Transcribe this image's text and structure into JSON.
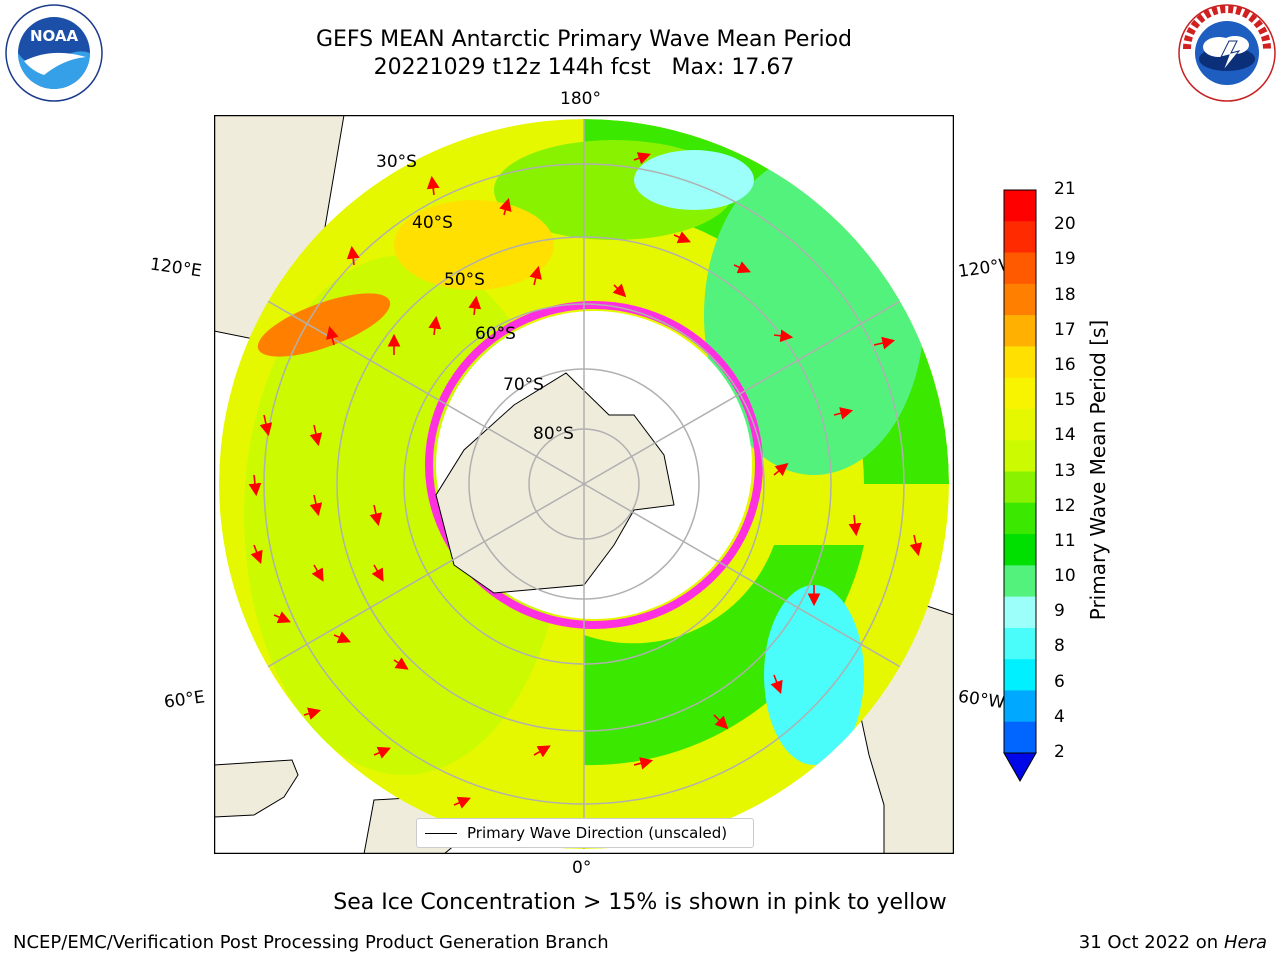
{
  "title": {
    "line1": "GEFS MEAN Antarctic Primary Wave Mean Period",
    "line2": "20221029 t12z 144h fcst   Max: 17.67"
  },
  "logos": {
    "left": "NOAA",
    "left_ring": "NATIONAL OCEANIC AND ATMOSPHERIC ADMINISTRATION · U.S. DEPARTMENT OF COMMERCE",
    "right_ring": "NATIONAL WEATHER SERVICE"
  },
  "map": {
    "projection": "south-polar-stereographic",
    "meridian_labels": {
      "top": "180°",
      "bottom": "0°",
      "upper_left": "120°E",
      "upper_right": "120°W",
      "lower_left": "60°E",
      "lower_right": "60°W"
    },
    "latitude_labels": [
      "30°S",
      "40°S",
      "50°S",
      "60°S",
      "70°S",
      "80°S"
    ],
    "grid": true
  },
  "legend": {
    "line_label": "Primary Wave Direction (unscaled)"
  },
  "colorbar": {
    "label": "Primary Wave Mean Period [s]",
    "ticks": [
      "21",
      "20",
      "19",
      "18",
      "17",
      "16",
      "15",
      "14",
      "13",
      "12",
      "11",
      "10",
      "9",
      "8",
      "6",
      "4",
      "2"
    ],
    "colors": [
      "#ff0000",
      "#ff2a00",
      "#ff5a00",
      "#ff8000",
      "#ffb000",
      "#ffe000",
      "#f8f400",
      "#e6f800",
      "#ccfa00",
      "#88f200",
      "#3ae800",
      "#00e000",
      "#52f27c",
      "#9cfffa",
      "#4afcfa",
      "#00f0ff",
      "#00a8ff",
      "#0066ff"
    ],
    "extend_color": "#0008e8"
  },
  "notes": {
    "sea_ice": "Sea Ice Concentration > 15% is shown in pink to yellow",
    "footer_left": "NCEP/EMC/Verification Post Processing Product Generation Branch",
    "footer_right_date": "31 Oct 2022 on ",
    "footer_right_machine": "Hera"
  }
}
